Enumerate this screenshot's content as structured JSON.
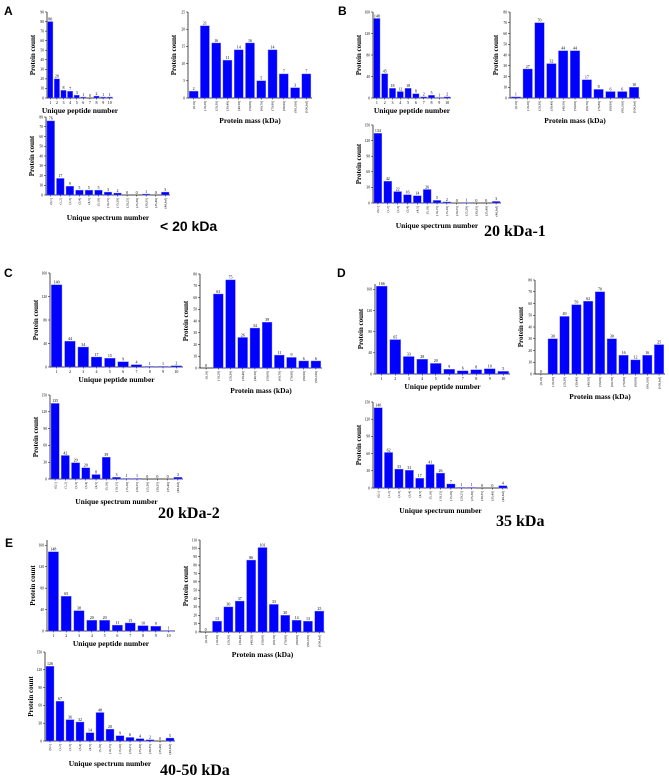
{
  "panels": [
    {
      "letter": "A",
      "title": "< 20 kDa"
    },
    {
      "letter": "B",
      "title": "20 kDa-1"
    },
    {
      "letter": "C",
      "title": "20 kDa-2"
    },
    {
      "letter": "D",
      "title": "35 kDa"
    },
    {
      "letter": "E",
      "title": "40-50 kDa"
    }
  ],
  "colors": {
    "bar": "#0000ff",
    "bar_edge": "#8080ff",
    "axis": "#000000"
  },
  "chart_data": [
    {
      "panel": "A",
      "type": "bar",
      "xlabel": "Unique peptide number",
      "ylabel": "Protein count",
      "categories": [
        "1",
        "2",
        "3",
        "4",
        "5",
        "6",
        "7",
        "8",
        "9",
        "10"
      ],
      "values": [
        80,
        20,
        8,
        7,
        3,
        1,
        0,
        2,
        1,
        1
      ],
      "ylim": [
        0,
        90
      ],
      "yticks": [
        0,
        10,
        20,
        30,
        40,
        50,
        60,
        70,
        80,
        90
      ],
      "grid": false
    },
    {
      "panel": "A",
      "type": "bar",
      "xlabel": "Protein mass (kDa)",
      "ylabel": "Protein count",
      "categories": [
        "(0,10]",
        "(10,20]",
        "(20,30]",
        "(30,40]",
        "(40,50]",
        "(50,60]",
        "(60,70]",
        "(70,80]",
        "(80,90]",
        "(90,100]",
        "(100,Inf]"
      ],
      "values": [
        2,
        21,
        16,
        11,
        14,
        16,
        5,
        14,
        7,
        3,
        7
      ],
      "ylim": [
        0,
        25
      ],
      "yticks": [
        0,
        5,
        10,
        15,
        20,
        25
      ],
      "grid": false
    },
    {
      "panel": "A",
      "type": "bar",
      "xlabel": "Unique spectrum number",
      "ylabel": "Protein count",
      "categories": [
        "(0,1]",
        "(1,2]",
        "(2,3]",
        "(3,4]",
        "(4,5]",
        "(5,10]",
        "(10,15]",
        "(15,20]",
        "(20,25]",
        "(25,30]",
        "(30,35]",
        "(35,40]",
        "(40,Inf]"
      ],
      "values": [
        76,
        17,
        9,
        5,
        5,
        5,
        3,
        2,
        0,
        0,
        1,
        0,
        3
      ],
      "ylim": [
        0,
        80
      ],
      "yticks": [
        0,
        10,
        20,
        30,
        40,
        50,
        60,
        70,
        80
      ],
      "grid": false
    },
    {
      "panel": "B",
      "type": "bar",
      "xlabel": "Unique peptide number",
      "ylabel": "Protein count",
      "categories": [
        "1",
        "2",
        "3",
        "4",
        "5",
        "6",
        "7",
        "8",
        "9",
        "10"
      ],
      "values": [
        148,
        45,
        18,
        12,
        18,
        8,
        2,
        5,
        1,
        2
      ],
      "ylim": [
        0,
        160
      ],
      "yticks": [
        0,
        40,
        80,
        120,
        160
      ],
      "grid": false
    },
    {
      "panel": "B",
      "type": "bar",
      "xlabel": "Protein mass (kDa)",
      "ylabel": "Protein count",
      "categories": [
        "(0,10]",
        "(10,20]",
        "(20,30]",
        "(30,40]",
        "(40,50]",
        "(50,60]",
        "(60,70]",
        "(70,80]",
        "(80,90]",
        "(90,100]",
        "(100,Inf]"
      ],
      "values": [
        1,
        27,
        70,
        32,
        44,
        44,
        17,
        8,
        6,
        6,
        10
      ],
      "ylim": [
        0,
        80
      ],
      "yticks": [
        0,
        10,
        20,
        30,
        40,
        50,
        60,
        70,
        80
      ],
      "grid": false
    },
    {
      "panel": "B",
      "type": "bar",
      "xlabel": "Unique spectrum number",
      "ylabel": "Protein count",
      "categories": [
        "(0,1]",
        "(1,2]",
        "(2,3]",
        "(3,4]",
        "(4,5]",
        "(5,10]",
        "(10,15]",
        "(15,20]",
        "(20,25]",
        "(25,30]",
        "(30,35]",
        "(35,40]",
        "(40,Inf]"
      ],
      "values": [
        134,
        42,
        22,
        16,
        14,
        26,
        5,
        2,
        0,
        1,
        0,
        0,
        3
      ],
      "ylim": [
        0,
        150
      ],
      "yticks": [
        0,
        30,
        60,
        90,
        120,
        150
      ],
      "grid": false
    },
    {
      "panel": "C",
      "type": "bar",
      "xlabel": "Unique peptide number",
      "ylabel": "Protein count",
      "categories": [
        "1",
        "2",
        "3",
        "4",
        "5",
        "6",
        "7",
        "8",
        "9",
        "10"
      ],
      "values": [
        140,
        44,
        34,
        17,
        15,
        9,
        4,
        1,
        1,
        2
      ],
      "ylim": [
        0,
        160
      ],
      "yticks": [
        0,
        40,
        80,
        120,
        160
      ],
      "grid": false
    },
    {
      "panel": "C",
      "type": "bar",
      "xlabel": "Protein mass (kDa)",
      "ylabel": "Protein count",
      "categories": [
        "(0,10]",
        "(10,20]",
        "(20,30]",
        "(30,40]",
        "(40,50]",
        "(50,60]",
        "(60,70]",
        "(70,80]",
        "(80,90]",
        "(90,100]"
      ],
      "values": [
        0,
        63,
        75,
        26,
        34,
        39,
        11,
        9,
        6,
        6
      ],
      "ylim": [
        0,
        80
      ],
      "yticks": [
        0,
        10,
        20,
        30,
        40,
        50,
        60,
        70,
        80
      ],
      "grid": false
    },
    {
      "panel": "C",
      "type": "bar",
      "xlabel": "Unique spectrum number",
      "ylabel": "Protein count",
      "categories": [
        "(0,1]",
        "(1,2]",
        "(2,3]",
        "(3,4]",
        "(4,5]",
        "(5,10]",
        "(10,15]",
        "(15,20]",
        "(20,25]",
        "(25,30]",
        "(30,35]",
        "(35,40]",
        "(40,Inf]"
      ],
      "values": [
        135,
        42,
        29,
        20,
        8,
        39,
        3,
        1,
        1,
        0,
        0,
        0,
        3
      ],
      "ylim": [
        0,
        150
      ],
      "yticks": [
        0,
        30,
        60,
        90,
        120,
        150
      ],
      "grid": false
    },
    {
      "panel": "D",
      "type": "bar",
      "xlabel": "Unique peptide number",
      "ylabel": "Protein count",
      "categories": [
        "1",
        "2",
        "3",
        "4",
        "5",
        "6",
        "7",
        "8",
        "9",
        "10"
      ],
      "values": [
        166,
        65,
        33,
        28,
        20,
        9,
        6,
        8,
        10,
        5
      ],
      "ylim": [
        0,
        170
      ],
      "yticks": [
        0,
        40,
        80,
        120,
        160
      ],
      "grid": false
    },
    {
      "panel": "D",
      "type": "bar",
      "xlabel": "Protein mass (kDa)",
      "ylabel": "Protein count",
      "categories": [
        "(0,10]",
        "(10,20]",
        "(20,30]",
        "(30,40]",
        "(40,50]",
        "(50,60]",
        "(60,70]",
        "(70,80]",
        "(80,90]",
        "(90,100]",
        "(100,Inf]"
      ],
      "values": [
        0,
        30,
        49,
        59,
        62,
        70,
        30,
        16,
        12,
        16,
        25
      ],
      "ylim": [
        0,
        80
      ],
      "yticks": [
        0,
        10,
        20,
        30,
        40,
        50,
        60,
        70,
        80
      ],
      "grid": false
    },
    {
      "panel": "D",
      "type": "bar",
      "xlabel": "Unique spectrum number",
      "ylabel": "Protein count",
      "categories": [
        "(0,1]",
        "(1,2]",
        "(2,3]",
        "(3,4]",
        "(4,5]",
        "(5,10]",
        "(10,15]",
        "(15,20]",
        "(20,25]",
        "(25,30]",
        "(30,35]",
        "(35,40]",
        "(40,Inf]"
      ],
      "values": [
        140,
        62,
        33,
        31,
        17,
        41,
        26,
        7,
        1,
        1,
        0,
        0,
        4
      ],
      "ylim": [
        0,
        150
      ],
      "yticks": [
        0,
        30,
        60,
        90,
        120,
        150
      ],
      "grid": false
    },
    {
      "panel": "E",
      "type": "bar",
      "xlabel": "Unique peptide number",
      "ylabel": "Protein count",
      "categories": [
        "1",
        "2",
        "3",
        "4",
        "5",
        "6",
        "7",
        "8",
        "9",
        "10"
      ],
      "values": [
        148,
        65,
        38,
        20,
        20,
        11,
        15,
        10,
        9,
        1
      ],
      "ylim": [
        0,
        170
      ],
      "yticks": [
        0,
        40,
        80,
        120,
        160
      ],
      "grid": false
    },
    {
      "panel": "E",
      "type": "bar",
      "xlabel": "Protein mass (kDa)",
      "ylabel": "Protein count",
      "categories": [
        "(0,10]",
        "(10,20]",
        "(20,30]",
        "(30,40]",
        "(40,50]",
        "(50,60]",
        "(60,70]",
        "(70,80]",
        "(80,90]",
        "(90,100]",
        "(100,Inf]"
      ],
      "values": [
        0,
        13,
        30,
        37,
        86,
        101,
        33,
        20,
        14,
        13,
        25
      ],
      "ylim": [
        0,
        110
      ],
      "yticks": [
        0,
        10,
        20,
        30,
        40,
        50,
        60,
        70,
        80,
        90,
        100,
        110
      ],
      "grid": false
    },
    {
      "panel": "E",
      "type": "bar",
      "xlabel": "Unique spectrum number",
      "ylabel": "Protein count",
      "categories": [
        "(0,1]",
        "(1,2]",
        "(2,3]",
        "(3,4]",
        "(4,5]",
        "(5,10]",
        "(10,15]",
        "(15,20]",
        "(20,25]",
        "(25,30]",
        "(30,35]",
        "(35,40]",
        "(40,Inf]"
      ],
      "values": [
        126,
        67,
        36,
        32,
        14,
        48,
        20,
        9,
        6,
        4,
        2,
        0,
        5
      ],
      "ylim": [
        0,
        150
      ],
      "yticks": [
        0,
        30,
        60,
        90,
        120,
        150
      ],
      "grid": false
    }
  ]
}
